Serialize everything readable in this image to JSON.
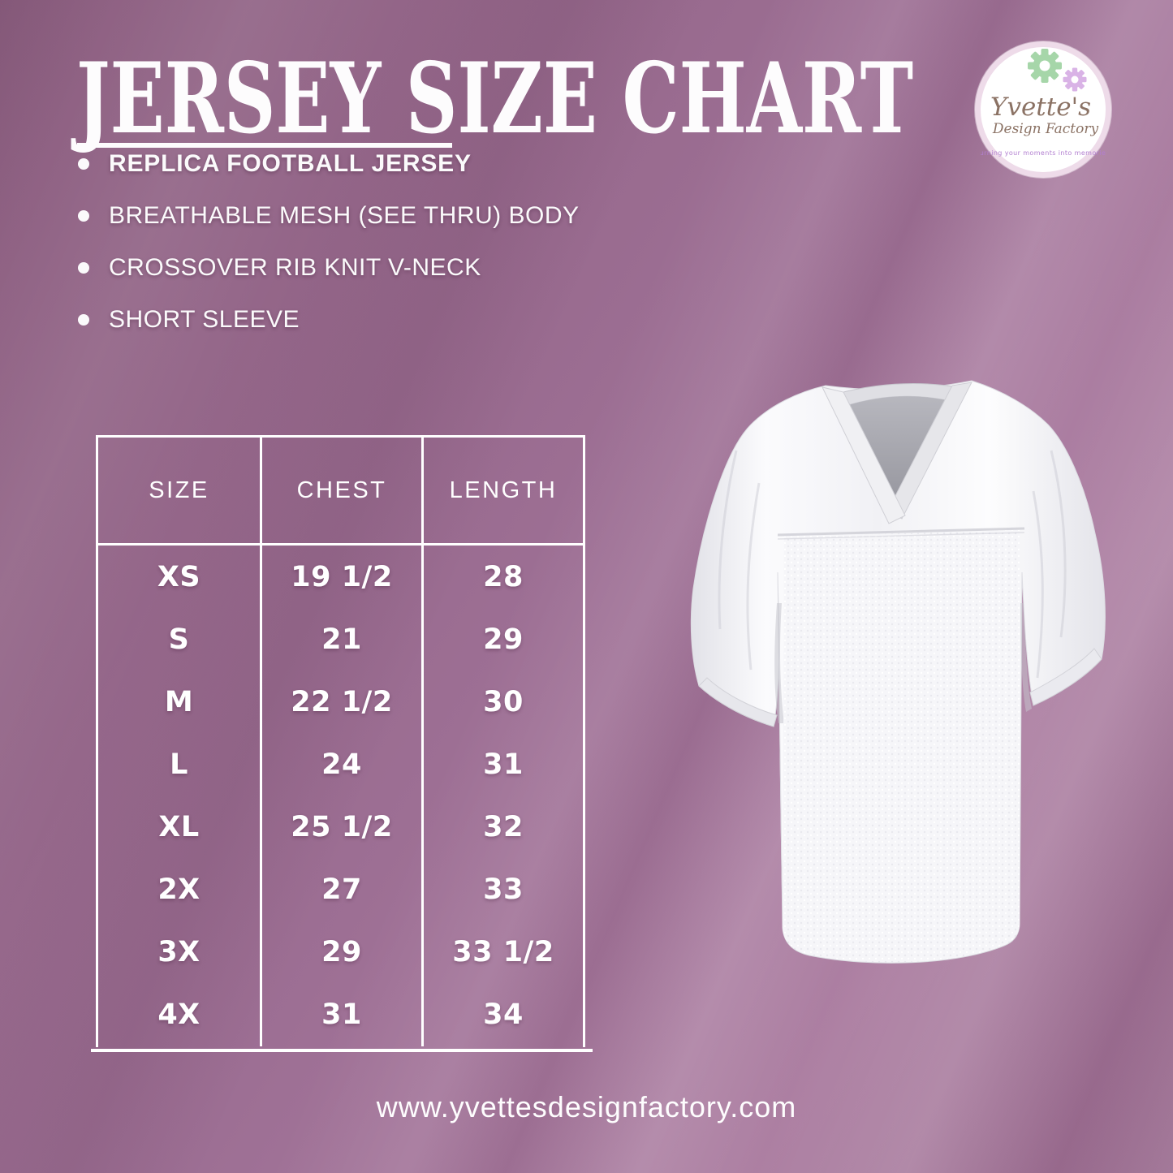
{
  "header": {
    "title": "JERSEY SIZE CHART"
  },
  "features": [
    "REPLICA FOOTBALL JERSEY",
    "BREATHABLE MESH (SEE THRU) BODY",
    "CROSSOVER RIB KNIT V-NECK",
    "SHORT SLEEVE"
  ],
  "logo": {
    "line1": "Yvette's",
    "line2": "Design Factory",
    "tagline": "turning your moments into memories"
  },
  "size_chart": {
    "columns": [
      "SIZE",
      "CHEST",
      "LENGTH"
    ],
    "rows": [
      {
        "size": "XS",
        "chest": "19 1/2",
        "length": "28"
      },
      {
        "size": "S",
        "chest": "21",
        "length": "29"
      },
      {
        "size": "M",
        "chest": "22 1/2",
        "length": "30"
      },
      {
        "size": "L",
        "chest": "24",
        "length": "31"
      },
      {
        "size": "XL",
        "chest": "25 1/2",
        "length": "32"
      },
      {
        "size": "2X",
        "chest": "27",
        "length": "33"
      },
      {
        "size": "3X",
        "chest": "29",
        "length": "33 1/2"
      },
      {
        "size": "4X",
        "chest": "31",
        "length": "34"
      }
    ]
  },
  "footer": {
    "website": "www.yvettesdesignfactory.com"
  },
  "jersey_image": {
    "description": "white-replica-football-jersey-mesh-body-v-neck"
  },
  "colors": {
    "background_mauve": "#9a6b8f",
    "text_white": "#ffffff",
    "logo_gear_green": "#a6d6a9",
    "logo_gear_purple": "#d9b3e6",
    "logo_script_brown": "#8b7264",
    "logo_tagline_purple": "#b27fd0",
    "jersey_white": "#f4f4f7"
  }
}
